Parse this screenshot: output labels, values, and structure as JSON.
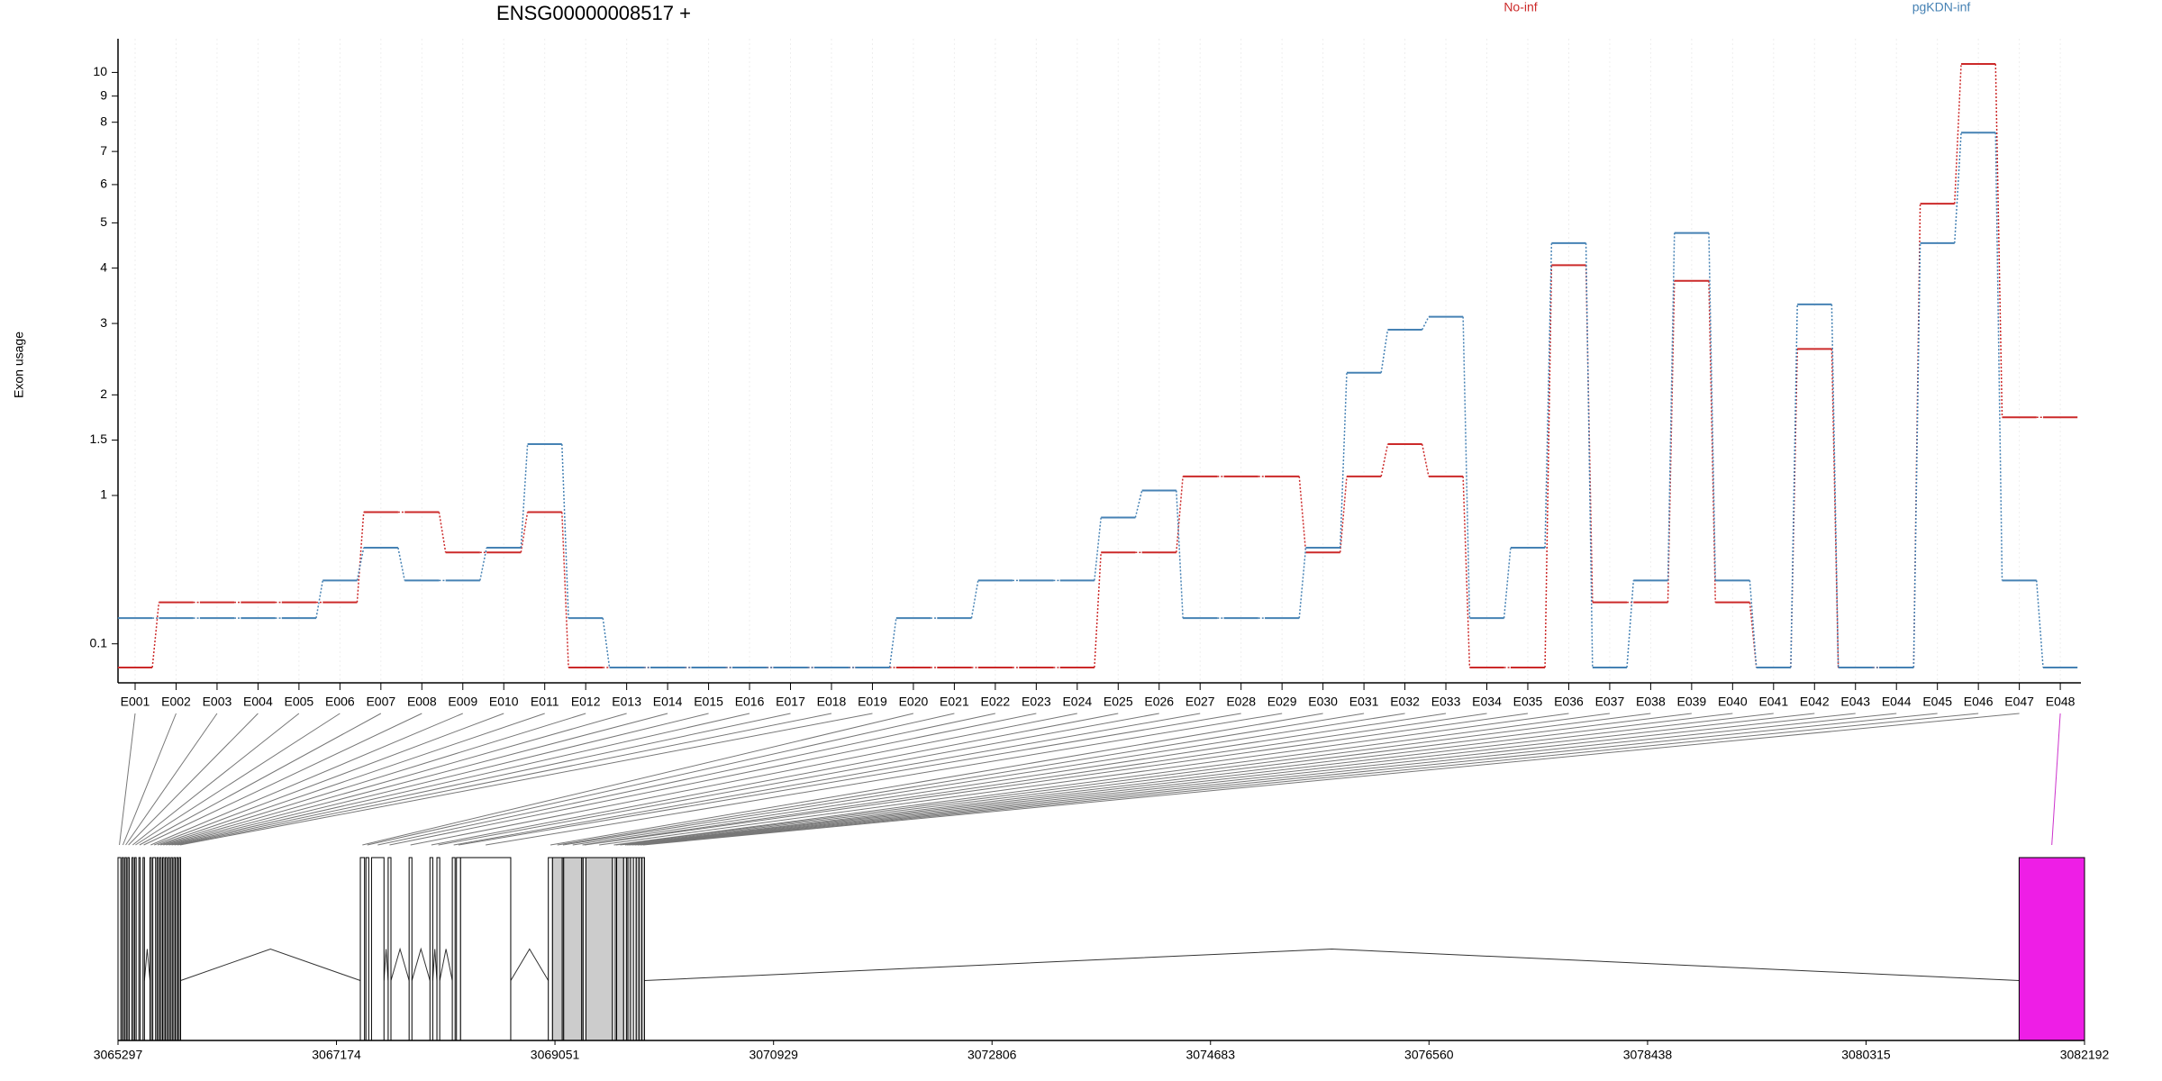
{
  "chart_data": {
    "type": "line",
    "title": "ENSG00000008517 +",
    "y_label": "Exon usage",
    "yscale": "log1p",
    "grid": true,
    "categories": [
      "E001",
      "E002",
      "E003",
      "E004",
      "E005",
      "E006",
      "E007",
      "E008",
      "E009",
      "E010",
      "E011",
      "E012",
      "E013",
      "E014",
      "E015",
      "E016",
      "E017",
      "E018",
      "E019",
      "E020",
      "E021",
      "E022",
      "E023",
      "E024",
      "E025",
      "E026",
      "E027",
      "E028",
      "E029",
      "E030",
      "E031",
      "E032",
      "E033",
      "E034",
      "E035",
      "E036",
      "E037",
      "E038",
      "E039",
      "E040",
      "E041",
      "E042",
      "E043",
      "E044",
      "E045",
      "E046",
      "E047",
      "E048"
    ],
    "series": [
      {
        "name": "No-inf",
        "color": "#cc2a2a",
        "values": [
          0,
          0.3,
          0.3,
          0.3,
          0.3,
          0.3,
          0.87,
          0.87,
          0.59,
          0.59,
          0.87,
          0,
          0,
          0,
          0,
          0,
          0,
          0,
          0,
          0,
          0,
          0,
          0,
          0,
          0.59,
          0.59,
          1.16,
          1.16,
          1.16,
          0.59,
          1.16,
          1.46,
          1.16,
          0,
          0,
          4.06,
          0.3,
          0.3,
          3.75,
          0.3,
          0,
          2.61,
          0,
          0,
          5.48,
          10.38,
          1.74,
          1.74
        ]
      },
      {
        "name": "pgKDN-inf",
        "color": "#4682b4",
        "values": [
          0.22,
          0.22,
          0.22,
          0.22,
          0.22,
          0.42,
          0.62,
          0.42,
          0.42,
          0.62,
          1.46,
          0.22,
          0,
          0,
          0,
          0,
          0,
          0,
          0,
          0.22,
          0.22,
          0.42,
          0.42,
          0.42,
          0.83,
          1.04,
          0.22,
          0.22,
          0.22,
          0.62,
          2.28,
          2.9,
          3.11,
          0.22,
          0.62,
          4.53,
          0,
          0.42,
          4.76,
          0.42,
          0,
          3.32,
          0,
          0,
          4.53,
          7.63,
          0.42,
          0
        ]
      }
    ],
    "ylim": [
      -0.06,
      11.6
    ],
    "yticks": [
      0.1,
      1,
      1.5,
      2,
      3,
      4,
      5,
      6,
      7,
      8,
      9,
      10
    ],
    "gene_model": {
      "xlim": [
        3065297,
        3082192
      ],
      "xticks": [
        3065297,
        3067174,
        3069051,
        3070929,
        3072806,
        3074683,
        3076560,
        3078438,
        3080315,
        3082192
      ],
      "starts": [
        3065297,
        3065333,
        3065357,
        3065381,
        3065417,
        3065441,
        3065476,
        3065512,
        3065572,
        3065596,
        3065632,
        3065656,
        3065680,
        3065704,
        3065728,
        3065752,
        3065776,
        3065800,
        3065823,
        3067379,
        3067427,
        3067475,
        3067618,
        3067798,
        3067977,
        3068037,
        3068169,
        3068205,
        3068240,
        3068994,
        3069030,
        3069114,
        3069126,
        3069281,
        3069293,
        3069317,
        3069545,
        3069569,
        3069581,
        3069641,
        3069665,
        3069677,
        3069701,
        3069725,
        3069749,
        3069773,
        3069797,
        3081630
      ],
      "ends": [
        3065321,
        3065345,
        3065369,
        3065393,
        3065429,
        3065453,
        3065488,
        3065524,
        3065584,
        3065620,
        3065644,
        3065668,
        3065692,
        3065716,
        3065740,
        3065764,
        3065788,
        3065812,
        3065835,
        3067415,
        3067451,
        3067582,
        3067642,
        3067822,
        3068001,
        3068061,
        3068193,
        3068240,
        3068671,
        3069030,
        3069114,
        3069126,
        3069281,
        3069293,
        3069317,
        3069545,
        3069569,
        3069581,
        3069641,
        3069665,
        3069677,
        3069701,
        3069725,
        3069749,
        3069773,
        3069797,
        3069820,
        3082192
      ],
      "fills": [
        "#ffffff",
        "#ffffff",
        "#ffffff",
        "#ffffff",
        "#ffffff",
        "#ffffff",
        "#ffffff",
        "#ffffff",
        "#ffffff",
        "#ffffff",
        "#ffffff",
        "#ffffff",
        "#ffffff",
        "#ffffff",
        "#ffffff",
        "#ffffff",
        "#ffffff",
        "#ffffff",
        "#ffffff",
        "#ffffff",
        "#ffffff",
        "#ffffff",
        "#ffffff",
        "#ffffff",
        "#ffffff",
        "#ffffff",
        "#ffffff",
        "#ffffff",
        "#ffffff",
        "#ffffff",
        "#cccccc",
        "#ffffff",
        "#cccccc",
        "#ffffff",
        "#ffffff",
        "#cccccc",
        "#ffffff",
        "#ffffff",
        "#cccccc",
        "#ffffff",
        "#ffffff",
        "#cccccc",
        "#ffffff",
        "#ffffff",
        "#cccccc",
        "#cccccc",
        "#cccccc",
        "#ee1ee6"
      ]
    }
  }
}
